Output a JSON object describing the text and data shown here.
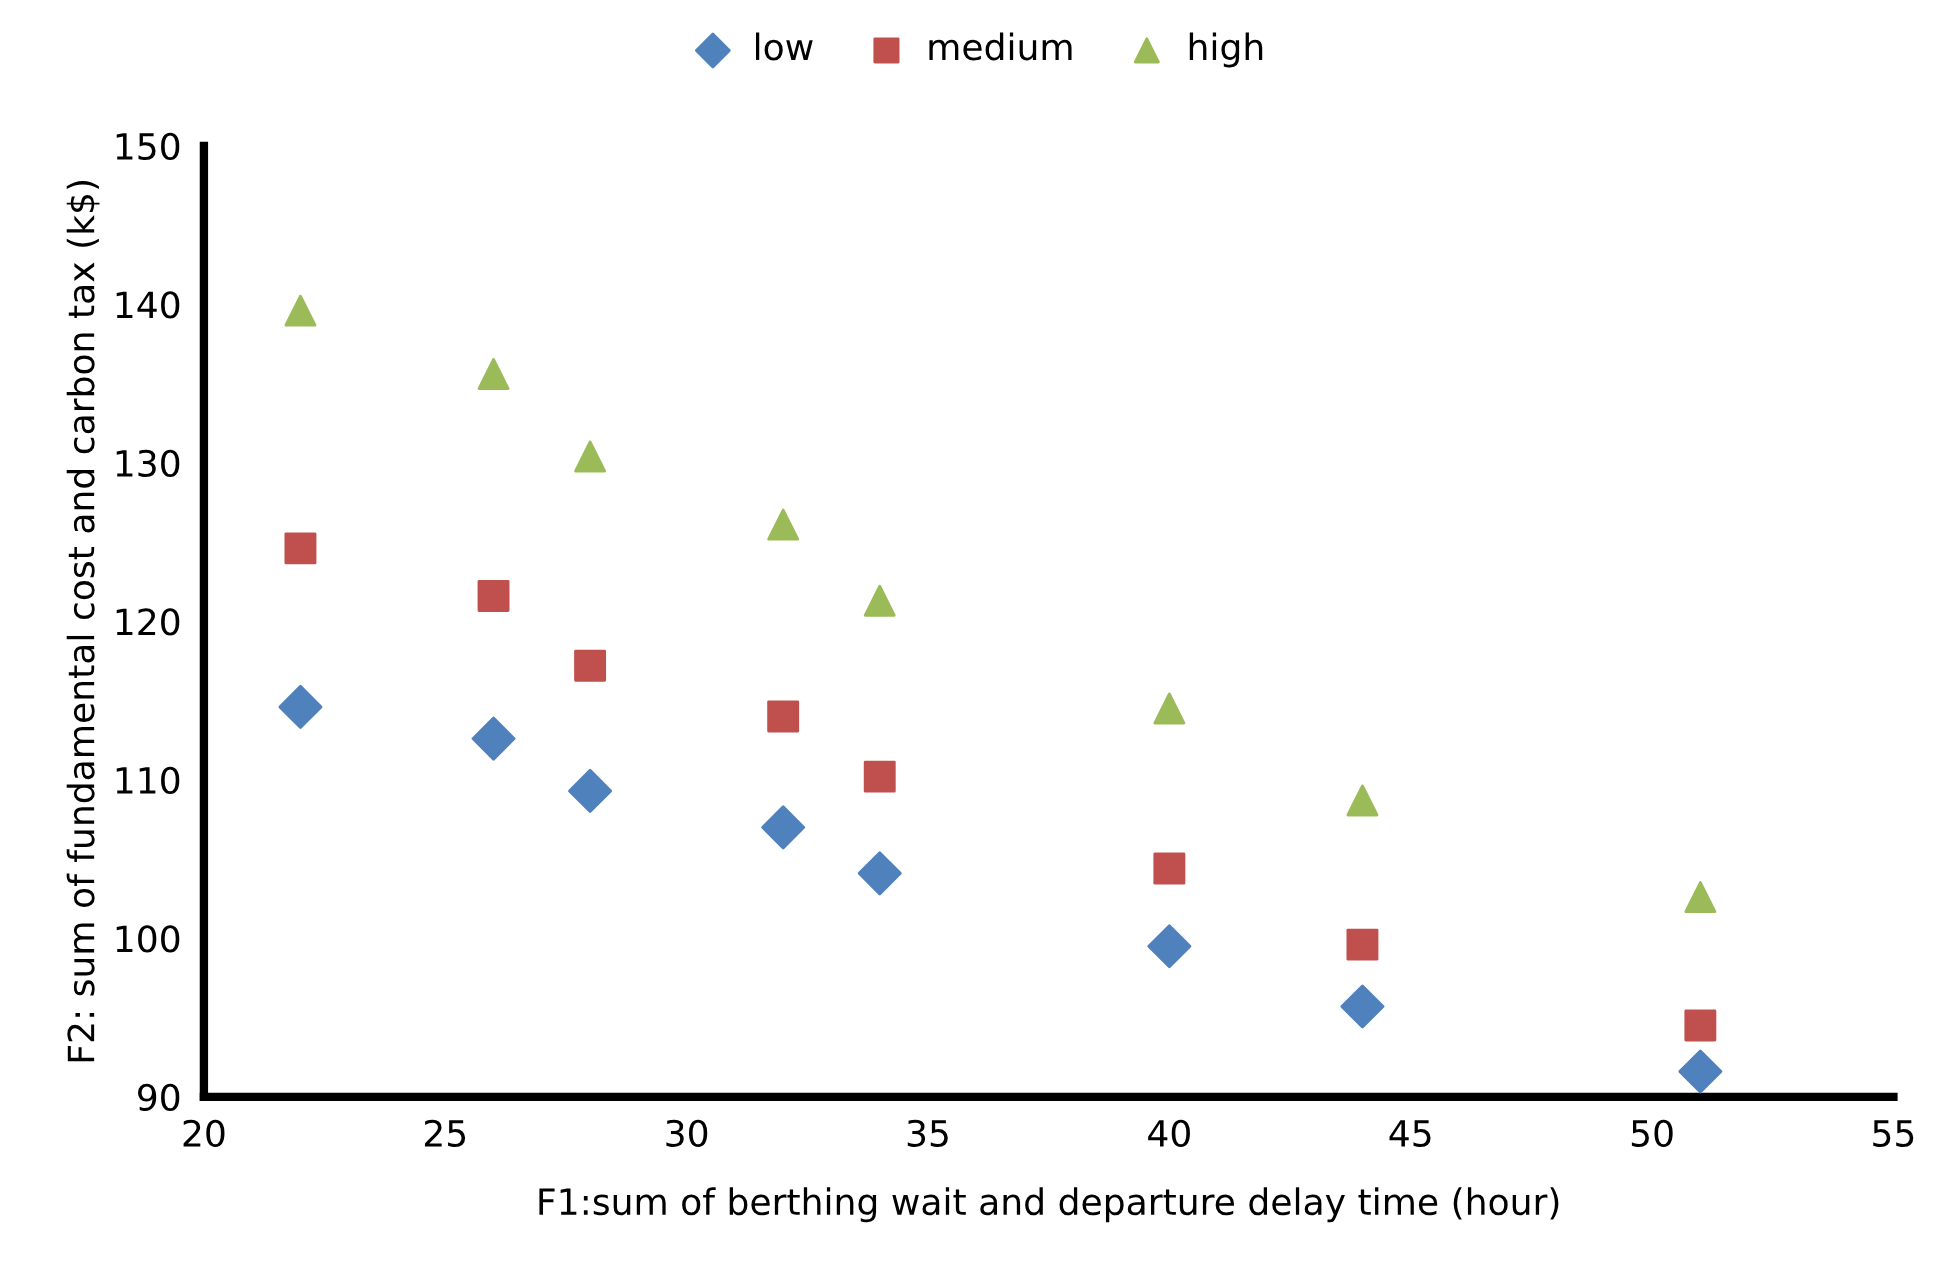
{
  "chart_data": {
    "type": "scatter",
    "xlabel": "F1:sum of berthing wait and departure delay time (hour)",
    "ylabel": "F2: sum of fundamental cost and carbon tax (k$)",
    "x": [
      22,
      26,
      28,
      32,
      34,
      40,
      44,
      51
    ],
    "series": [
      {
        "name": "low",
        "color": "#4f81bd",
        "marker": "diamond",
        "values": [
          114.6,
          112.6,
          109.3,
          107.0,
          104.1,
          99.5,
          95.7,
          91.6
        ]
      },
      {
        "name": "medium",
        "color": "#c0504d",
        "marker": "square",
        "values": [
          124.6,
          121.6,
          117.2,
          114.0,
          110.2,
          104.4,
          99.6,
          94.5
        ]
      },
      {
        "name": "high",
        "color": "#9bbb59",
        "marker": "triangle",
        "values": [
          139.6,
          135.6,
          130.4,
          126.1,
          121.3,
          114.5,
          108.7,
          102.6
        ]
      }
    ],
    "xlim": [
      20,
      55
    ],
    "xticks": [
      20,
      25,
      30,
      35,
      40,
      45,
      50,
      55
    ],
    "ylim": [
      90,
      150
    ],
    "yticks": [
      90,
      100,
      110,
      120,
      130,
      140,
      150
    ],
    "grid": false,
    "legend": "top"
  }
}
